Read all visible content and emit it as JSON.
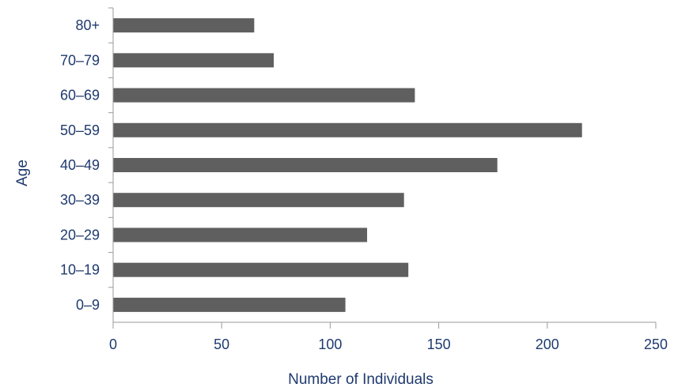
{
  "chart_data": {
    "type": "bar",
    "orientation": "horizontal",
    "categories": [
      "0–9",
      "10–19",
      "20–29",
      "30–39",
      "40–49",
      "50–59",
      "60–69",
      "70–79",
      "80+"
    ],
    "values": [
      107,
      136,
      117,
      134,
      177,
      216,
      139,
      74,
      65
    ],
    "xlabel": "Number of Individuals",
    "ylabel": "Age",
    "xlim": [
      0,
      250
    ],
    "xticks": [
      "0",
      "50",
      "100",
      "150",
      "200",
      "250"
    ],
    "grid": false,
    "legend": "none",
    "colors": {
      "bar": "#5f5f5f",
      "text": "#1f3a6e",
      "axis": "#9a9a9a"
    }
  }
}
